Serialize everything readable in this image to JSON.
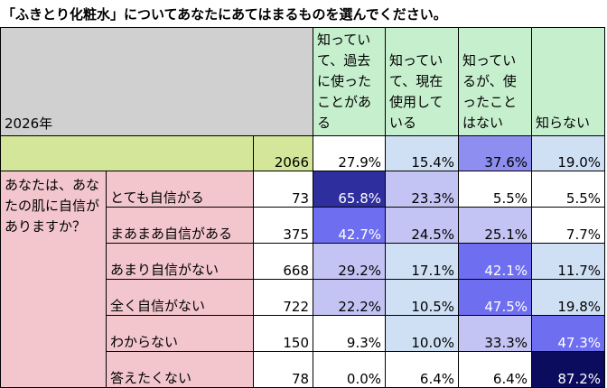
{
  "title": "「ふきとり化粧水」についてあなたにあてはまるものを選んでください。",
  "year": "2026年",
  "columns": [
    {
      "label": "知っていて、過去に使ったことがある"
    },
    {
      "label": "知っていて、現在使用している"
    },
    {
      "label": "知っているが、使ったことはない"
    },
    {
      "label": "知らない"
    }
  ],
  "total": {
    "n": "2066",
    "values": [
      "27.9%",
      "15.4%",
      "37.6%",
      "19.0%"
    ]
  },
  "question": "あなたは、あなたの肌に自信がありますか？",
  "rows": [
    {
      "label": "とても自信がる",
      "n": "73",
      "values": [
        "65.8%",
        "23.3%",
        "5.5%",
        "5.5%"
      ]
    },
    {
      "label": "まあまあ自信がある",
      "n": "375",
      "values": [
        "42.7%",
        "24.5%",
        "25.1%",
        "7.7%"
      ]
    },
    {
      "label": "あまり自信がない",
      "n": "668",
      "values": [
        "29.2%",
        "17.1%",
        "42.1%",
        "11.7%"
      ]
    },
    {
      "label": "全く自信がない",
      "n": "722",
      "values": [
        "22.2%",
        "10.5%",
        "47.5%",
        "19.8%"
      ]
    },
    {
      "label": "わからない",
      "n": "150",
      "values": [
        "9.3%",
        "10.0%",
        "33.3%",
        "47.3%"
      ]
    },
    {
      "label": "答えたくない",
      "n": "78",
      "values": [
        "0.0%",
        "6.4%",
        "6.4%",
        "87.2%"
      ]
    }
  ],
  "cell_colors": {
    "total": [
      "#ffffff",
      "#cfe0f5",
      "#8e8ef0",
      "#cfe0f5"
    ],
    "rows": [
      [
        "#2e2e9e",
        "#c4c4f4",
        "#ffffff",
        "#ffffff"
      ],
      [
        "#6e6ef0",
        "#c4c4f4",
        "#c4c4f4",
        "#ffffff"
      ],
      [
        "#c4c4f4",
        "#cfe0f5",
        "#6e6ef0",
        "#cfe0f5"
      ],
      [
        "#c4c4f4",
        "#cfe0f5",
        "#6e6ef0",
        "#cfe0f5"
      ],
      [
        "#ffffff",
        "#cfe0f5",
        "#c4c4f4",
        "#6e6ef0"
      ],
      [
        "#ffffff",
        "#ffffff",
        "#ffffff",
        "#0c0c5e"
      ]
    ],
    "white_text": [
      [
        0,
        0
      ],
      [
        1,
        0
      ],
      [
        2,
        2
      ],
      [
        3,
        2
      ],
      [
        4,
        3
      ],
      [
        5,
        3
      ]
    ],
    "total_white_text": []
  }
}
